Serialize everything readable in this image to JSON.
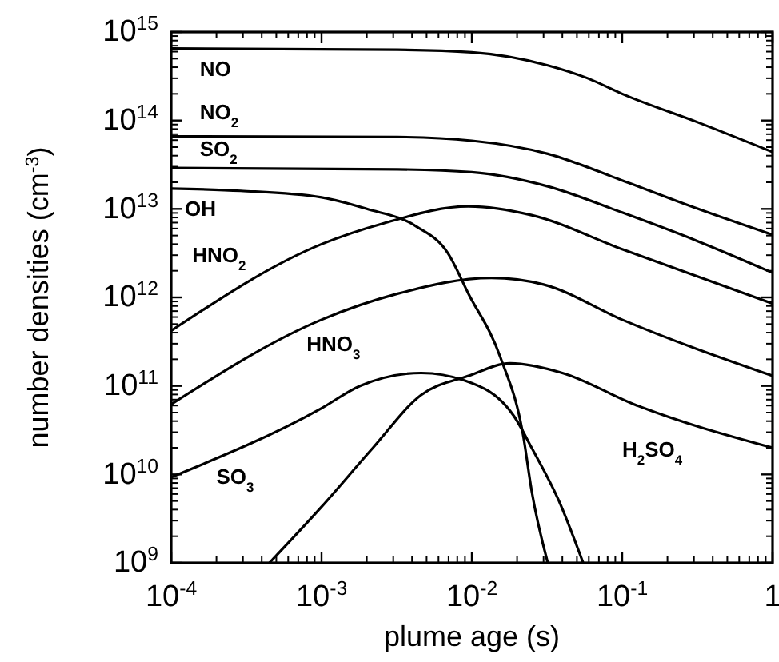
{
  "chart_data": {
    "type": "line",
    "xlabel": "plume age (s)",
    "ylabel": "number densities (cm$^{-3}$)",
    "log": "xy",
    "grid": false,
    "marker": "none",
    "line_style": "solid",
    "xlim": [
      0.0001,
      1
    ],
    "ylim": [
      1000000000.0,
      1000000000000000.0
    ],
    "xticks": [
      {
        "value": 0.0001,
        "label": "10$^{-4}$"
      },
      {
        "value": 0.001,
        "label": "10$^{-3}$"
      },
      {
        "value": 0.01,
        "label": "10$^{-2}$"
      },
      {
        "value": 0.1,
        "label": "10$^{-1}$"
      },
      1
    ],
    "yticks": [
      {
        "value": 1000000000.0,
        "label": "10$^{9}$"
      },
      {
        "value": 10000000000.0,
        "label": "10$^{10}$"
      },
      {
        "value": 100000000000.0,
        "label": "10$^{11}$"
      },
      {
        "value": 1000000000000.0,
        "label": "10$^{12}$"
      },
      {
        "value": 10000000000000.0,
        "label": "10$^{13}$"
      },
      {
        "value": 100000000000000.0,
        "label": "10$^{14}$"
      },
      {
        "value": 1000000000000000.0,
        "label": "10$^{15}$"
      }
    ],
    "series": [
      {
        "name": "NO",
        "color": "#000000",
        "x": [
          0.0001,
          0.0032,
          0.01,
          0.032,
          0.059,
          0.1,
          0.32,
          1
        ],
        "values": [
          650000000000000.0,
          630000000000000.0,
          590000000000000.0,
          420000000000000.0,
          300000000000000.0,
          200000000000000.0,
          95000000000000.0,
          44000000000000.0
        ]
      },
      {
        "name": "NO$_{2}$",
        "color": "#000000",
        "x": [
          0.0001,
          0.0032,
          0.01,
          0.032,
          0.1,
          0.32,
          1
        ],
        "values": [
          66000000000000.0,
          65000000000000.0,
          59000000000000.0,
          42000000000000.0,
          21000000000000.0,
          10000000000000.0,
          5100000000000.0
        ]
      },
      {
        "name": "SO$_{2}$",
        "color": "#000000",
        "x": [
          0.0001,
          0.0032,
          0.01,
          0.032,
          0.1,
          0.32,
          1
        ],
        "values": [
          29000000000000.0,
          28000000000000.0,
          26000000000000.0,
          18000000000000.0,
          9100000000000.0,
          4300000000000.0,
          1900000000000.0
        ]
      },
      {
        "name": "OH",
        "color": "#000000",
        "x": [
          0.0001,
          0.00029,
          0.001,
          0.002,
          0.0043,
          0.0069,
          0.0095,
          0.0155,
          0.022,
          0.025,
          0.032
        ],
        "values": [
          17000000000000.0,
          16000000000000.0,
          13500000000000.0,
          10000000000000.0,
          6300000000000.0,
          3200000000000.0,
          1100000000000.0,
          210000000000.0,
          27000000000.0,
          6500000000.0,
          1000000000.0
        ]
      },
      {
        "name": "HNO$_{2}$",
        "color": "#000000",
        "x": [
          0.0001,
          0.001,
          0.0026,
          0.0095,
          0.025,
          0.1,
          1
        ],
        "values": [
          420000000000.0,
          4000000000000.0,
          6900000000000.0,
          10700000000000.0,
          8500000000000.0,
          3500000000000.0,
          850000000000.0
        ]
      },
      {
        "name": "HNO$_{3}$",
        "color": "#000000",
        "x": [
          0.0001,
          0.001,
          0.0032,
          0.0135,
          0.03,
          0.1,
          1
        ],
        "values": [
          62000000000.0,
          560000000000.0,
          1100000000000.0,
          1660000000000.0,
          1400000000000.0,
          560000000000.0,
          130000000000.0
        ]
      },
      {
        "name": "SO$_{3}$",
        "color": "#000000",
        "x": [
          0.0001,
          0.001,
          0.0018,
          0.0046,
          0.009,
          0.019,
          0.025,
          0.038,
          0.055
        ],
        "values": [
          9300000000.0,
          56000000000.0,
          100000000000.0,
          140000000000.0,
          115000000000.0,
          46000000000.0,
          20000000000.0,
          5000000000.0,
          1000000000.0
        ]
      },
      {
        "name": "H$_{2}$SO$_{4}$",
        "color": "#000000",
        "x": [
          0.00045,
          0.001,
          0.0022,
          0.0046,
          0.0095,
          0.018,
          0.04,
          0.12,
          1
        ],
        "values": [
          1000000000.0,
          4300000000.0,
          20000000000.0,
          79000000000.0,
          130000000000.0,
          180000000000.0,
          140000000000.0,
          62000000000.0,
          20000000000.0
        ]
      }
    ]
  }
}
